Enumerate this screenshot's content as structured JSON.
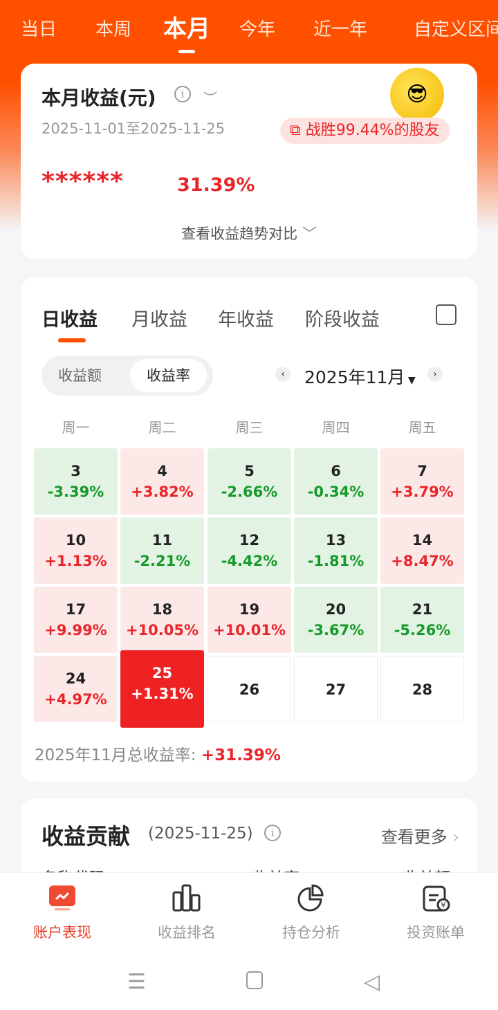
{
  "period_tabs": [
    "当日",
    "本周",
    "本月",
    "今年",
    "近一年",
    "自定义区间"
  ],
  "active_period": "本月",
  "summary": {
    "title": "本月收益(元)",
    "info_icon": "info-icon",
    "eye_icon": "eye-closed-icon",
    "date_range": "2025-11-01至2025-11-25",
    "beat_text": "战胜99.44%的股友",
    "masked_amount": "******",
    "return_rate": "31.39%",
    "trend_link": "查看收益趋势对比"
  },
  "profit": {
    "tabs": [
      "日收益",
      "月收益",
      "年收益",
      "阶段收益"
    ],
    "active_tab": "日收益",
    "toggle": [
      "收益额",
      "收益率"
    ],
    "active_toggle": "收益率",
    "month": "2025年11月",
    "weekdays": [
      "周一",
      "周二",
      "周三",
      "周四",
      "周五"
    ],
    "days": [
      {
        "day": "3",
        "rate": "-3.39%"
      },
      {
        "day": "4",
        "rate": "+3.82%"
      },
      {
        "day": "5",
        "rate": "-2.66%"
      },
      {
        "day": "6",
        "rate": "-0.34%"
      },
      {
        "day": "7",
        "rate": "+3.79%"
      },
      {
        "day": "10",
        "rate": "+1.13%"
      },
      {
        "day": "11",
        "rate": "-2.21%"
      },
      {
        "day": "12",
        "rate": "-4.42%"
      },
      {
        "day": "13",
        "rate": "-1.81%"
      },
      {
        "day": "14",
        "rate": "+8.47%"
      },
      {
        "day": "17",
        "rate": "+9.99%"
      },
      {
        "day": "18",
        "rate": "+10.05%"
      },
      {
        "day": "19",
        "rate": "+10.01%"
      },
      {
        "day": "20",
        "rate": "-3.67%"
      },
      {
        "day": "21",
        "rate": "-5.26%"
      },
      {
        "day": "24",
        "rate": "+4.97%"
      },
      {
        "day": "25",
        "rate": "+1.31%",
        "selected": true
      },
      {
        "day": "26",
        "rate": ""
      },
      {
        "day": "27",
        "rate": ""
      },
      {
        "day": "28",
        "rate": ""
      }
    ],
    "total_label": "2025年11月总收益率:",
    "total_value": "+31.39%"
  },
  "contribution": {
    "title": "收益贡献",
    "date": "(2025-11-25)",
    "more": "查看更多",
    "columns": [
      "名称代码",
      "收益率",
      "收益额"
    ]
  },
  "bottom_nav": [
    {
      "label": "账户表现",
      "icon": "chart-screen-icon"
    },
    {
      "label": "收益排名",
      "icon": "bar-chart-icon"
    },
    {
      "label": "持仓分析",
      "icon": "pie-chart-icon"
    },
    {
      "label": "投资账单",
      "icon": "bill-icon"
    }
  ],
  "colors": {
    "brand": "#ff5000",
    "up": "#e8262a",
    "down": "#159a2a"
  }
}
